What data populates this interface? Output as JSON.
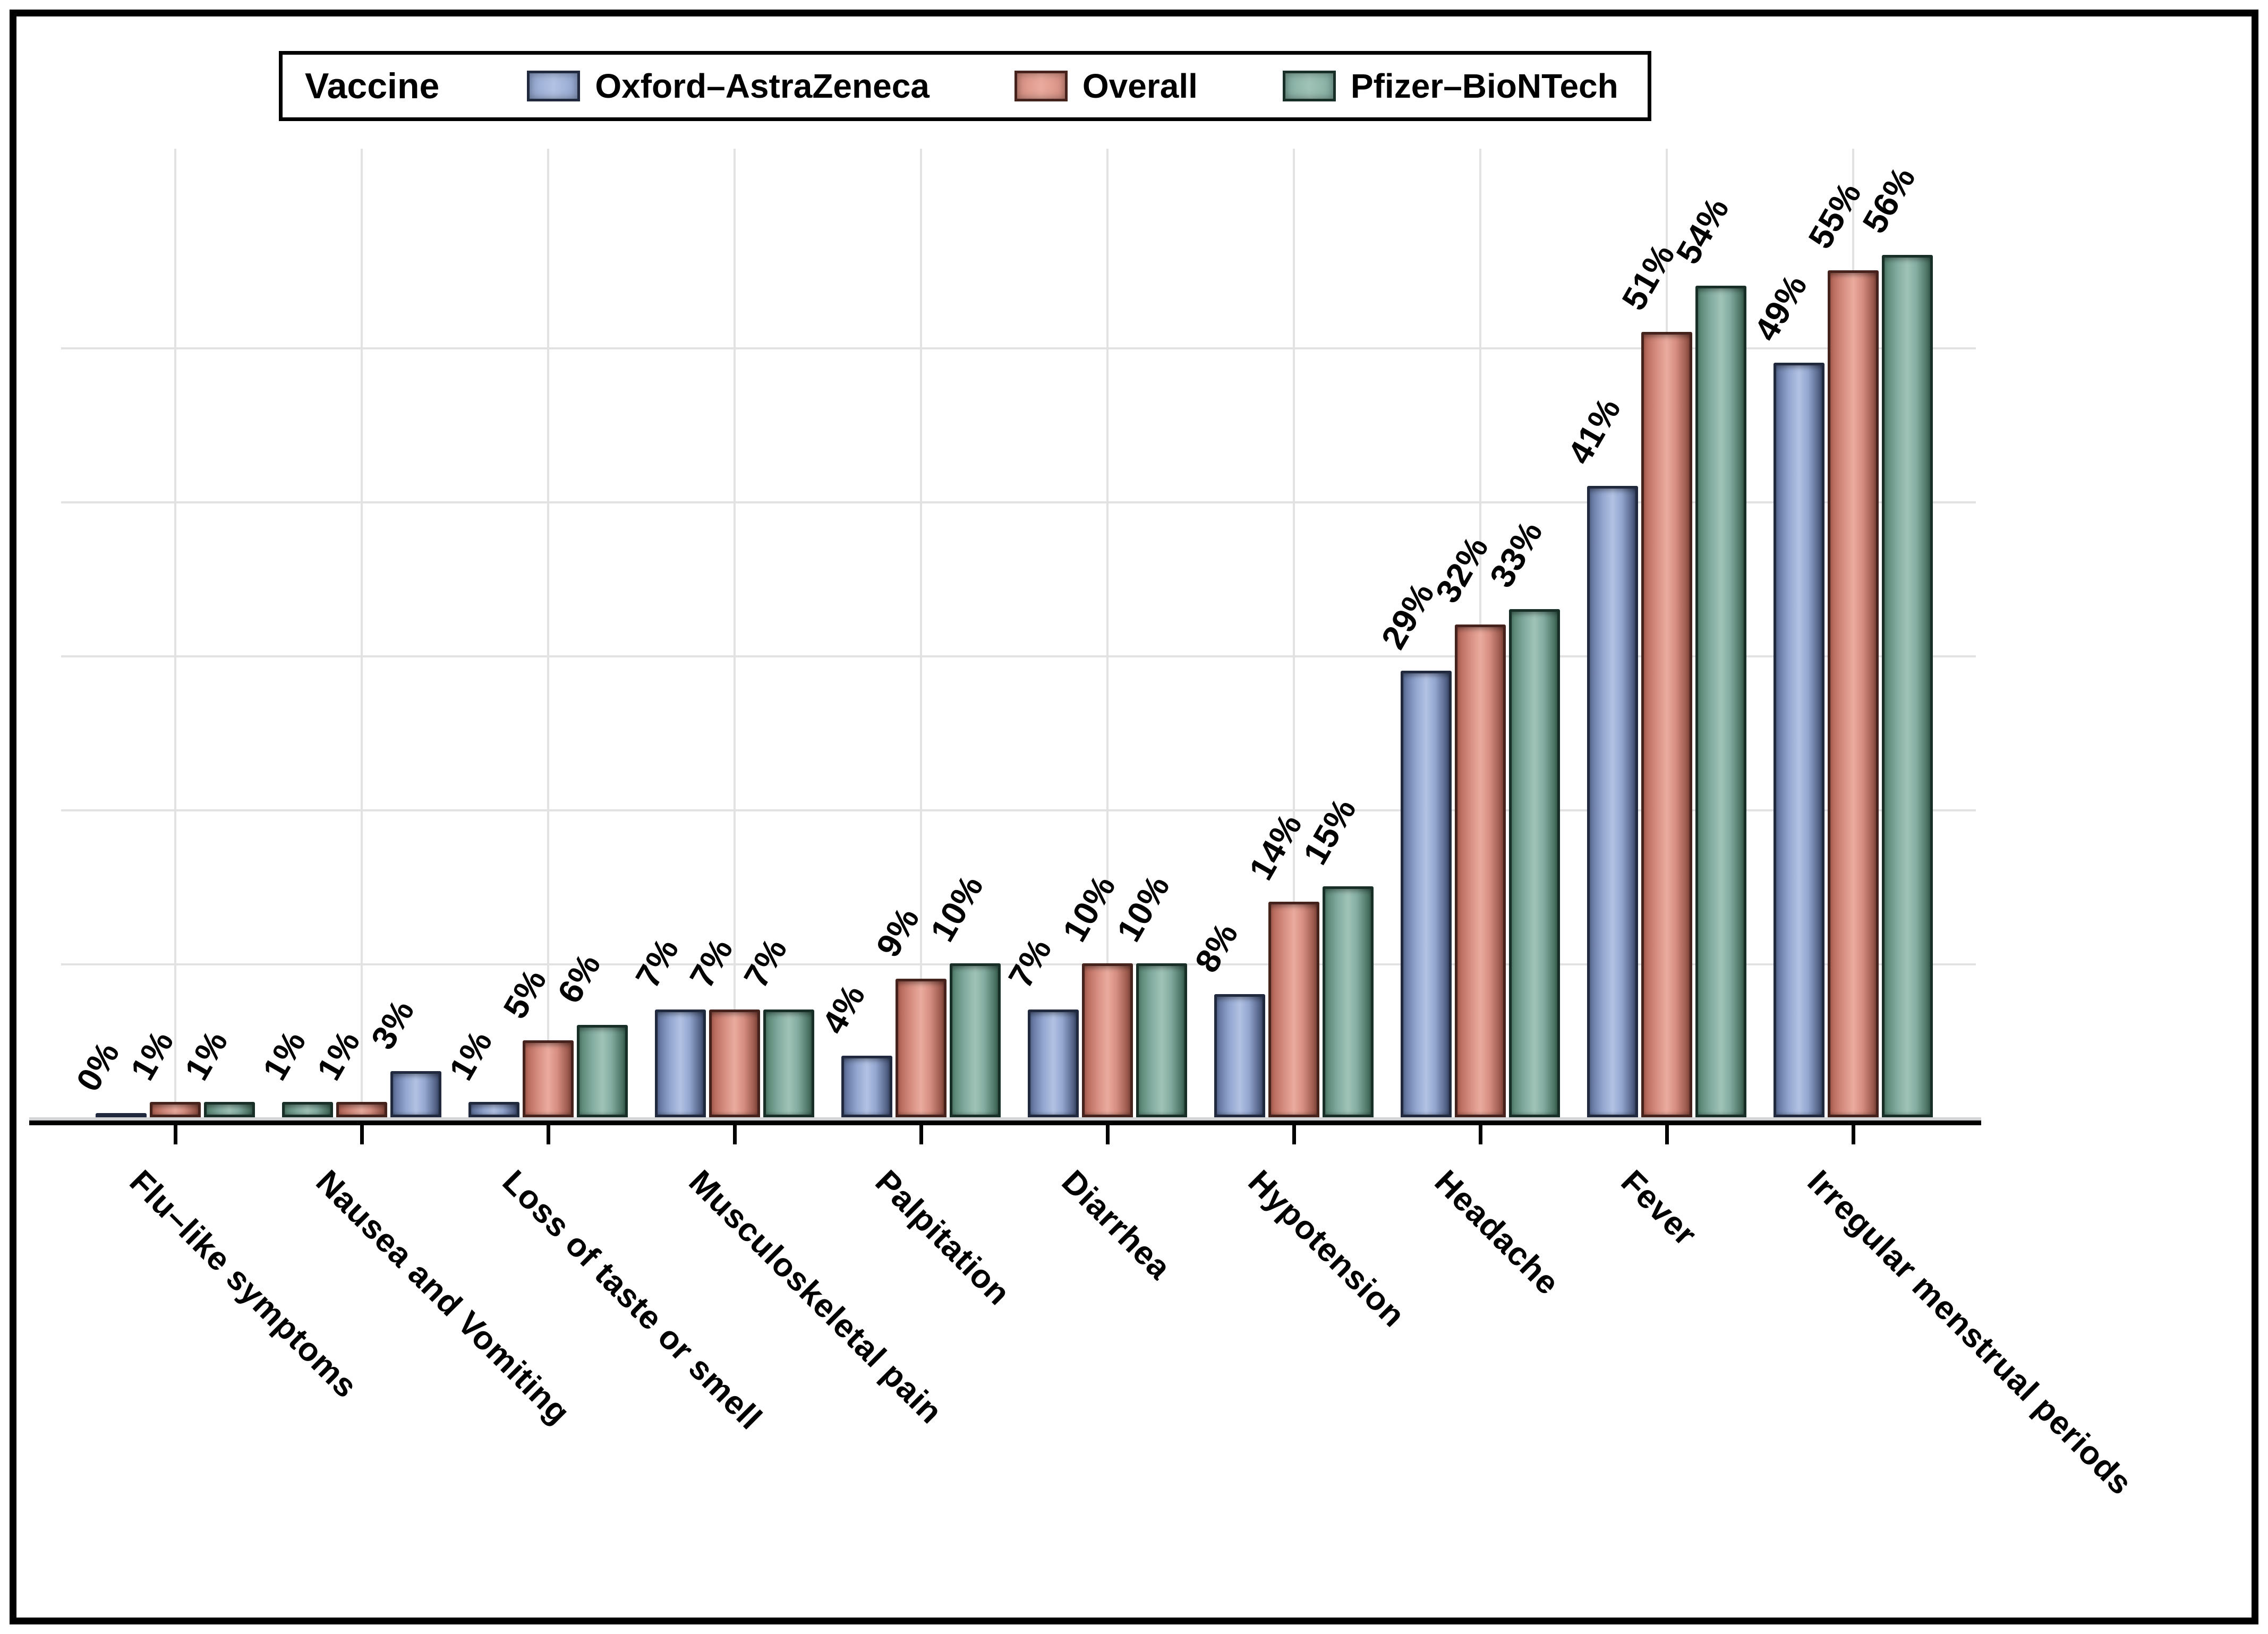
{
  "chart_data": {
    "type": "bar",
    "title": "",
    "legend_title": "Vaccine",
    "legend_position": "top",
    "grid": "on",
    "y_axis": {
      "min": 0,
      "max": 60,
      "gridline_interval": 10,
      "tick_labels_visible": false,
      "unit": "percent"
    },
    "x_axis": {
      "label_rotation_deg": 45,
      "value_label_rotation_deg": -60
    },
    "series": [
      {
        "key": "az",
        "name": "Oxford–AstraZeneca",
        "color": {
          "border": "#20293d",
          "edge": "#5c6e97",
          "mid": "#93a6cf",
          "light": "#b2c2e4",
          "edge_dark": "#414f72"
        }
      },
      {
        "key": "overall",
        "name": "Overall",
        "color": {
          "border": "#45231c",
          "edge": "#b06254",
          "mid": "#d68e81",
          "light": "#eaab9e",
          "edge_dark": "#8a4a3e"
        }
      },
      {
        "key": "pfizer",
        "name": "Pfizer–BioNTech",
        "color": {
          "border": "#182f27",
          "edge": "#54816f",
          "mid": "#83aca0",
          "light": "#a0c3b7",
          "edge_dark": "#3c6353"
        }
      }
    ],
    "categories": [
      "Flu–like symptoms",
      "Nausea and Vomiting",
      "Loss of taste or smell",
      "Musculoskeletal pain",
      "Palpitation",
      "Diarrhea",
      "Hypotension",
      "Headache",
      "Fever",
      "Irregular menstrual periods"
    ],
    "groups": [
      {
        "category": "Flu–like symptoms",
        "bars": [
          {
            "series": "az",
            "value": 0,
            "label": "0%"
          },
          {
            "series": "overall",
            "value": 1,
            "label": "1%"
          },
          {
            "series": "pfizer",
            "value": 1,
            "label": "1%"
          }
        ]
      },
      {
        "category": "Nausea and Vomiting",
        "bars": [
          {
            "series": "pfizer",
            "value": 1,
            "label": "1%"
          },
          {
            "series": "overall",
            "value": 1,
            "label": "1%"
          },
          {
            "series": "az",
            "value": 3,
            "label": "3%"
          }
        ]
      },
      {
        "category": "Loss of taste or smell",
        "bars": [
          {
            "series": "az",
            "value": 1,
            "label": "1%"
          },
          {
            "series": "overall",
            "value": 5,
            "label": "5%"
          },
          {
            "series": "pfizer",
            "value": 6,
            "label": "6%"
          }
        ]
      },
      {
        "category": "Musculoskeletal pain",
        "bars": [
          {
            "series": "az",
            "value": 7,
            "label": "7%"
          },
          {
            "series": "overall",
            "value": 7,
            "label": "7%"
          },
          {
            "series": "pfizer",
            "value": 7,
            "label": "7%"
          }
        ]
      },
      {
        "category": "Palpitation",
        "bars": [
          {
            "series": "az",
            "value": 4,
            "label": "4%"
          },
          {
            "series": "overall",
            "value": 9,
            "label": "9%"
          },
          {
            "series": "pfizer",
            "value": 10,
            "label": "10%"
          }
        ]
      },
      {
        "category": "Diarrhea",
        "bars": [
          {
            "series": "az",
            "value": 7,
            "label": "7%"
          },
          {
            "series": "overall",
            "value": 10,
            "label": "10%"
          },
          {
            "series": "pfizer",
            "value": 10,
            "label": "10%"
          }
        ]
      },
      {
        "category": "Hypotension",
        "bars": [
          {
            "series": "az",
            "value": 8,
            "label": "8%"
          },
          {
            "series": "overall",
            "value": 14,
            "label": "14%"
          },
          {
            "series": "pfizer",
            "value": 15,
            "label": "15%"
          }
        ]
      },
      {
        "category": "Headache",
        "bars": [
          {
            "series": "az",
            "value": 29,
            "label": "29%"
          },
          {
            "series": "overall",
            "value": 32,
            "label": "32%"
          },
          {
            "series": "pfizer",
            "value": 33,
            "label": "33%"
          }
        ]
      },
      {
        "category": "Fever",
        "bars": [
          {
            "series": "az",
            "value": 41,
            "label": "41%"
          },
          {
            "series": "overall",
            "value": 51,
            "label": "51%"
          },
          {
            "series": "pfizer",
            "value": 54,
            "label": "54%"
          }
        ]
      },
      {
        "category": "Irregular menstrual periods",
        "bars": [
          {
            "series": "az",
            "value": 49,
            "label": "49%"
          },
          {
            "series": "overall",
            "value": 55,
            "label": "55%"
          },
          {
            "series": "pfizer",
            "value": 56,
            "label": "56%"
          }
        ]
      }
    ]
  }
}
